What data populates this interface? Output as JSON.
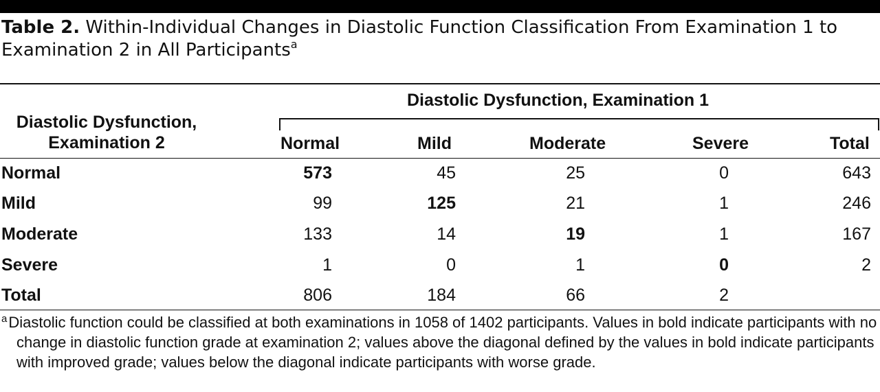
{
  "caption": {
    "label": "Table 2.",
    "text": "Within-Individual Changes in Diastolic Function Classification From Examination 1 to Examination 2 in All Participants",
    "footnote_mark": "a"
  },
  "table": {
    "stub_header_line1": "Diastolic Dysfunction,",
    "stub_header_line2": "Examination 2",
    "spanner": "Diastolic Dysfunction, Examination 1",
    "columns": [
      "Normal",
      "Mild",
      "Moderate",
      "Severe",
      "Total"
    ],
    "rows": [
      {
        "label": "Normal",
        "cells": [
          "573",
          "45",
          "25",
          "0",
          "643"
        ],
        "bold_index": 0
      },
      {
        "label": "Mild",
        "cells": [
          "99",
          "125",
          "21",
          "1",
          "246"
        ],
        "bold_index": 1
      },
      {
        "label": "Moderate",
        "cells": [
          "133",
          "14",
          "19",
          "1",
          "167"
        ],
        "bold_index": 2
      },
      {
        "label": "Severe",
        "cells": [
          "1",
          "0",
          "1",
          "0",
          "2"
        ],
        "bold_index": 3
      },
      {
        "label": "Total",
        "cells": [
          "806",
          "184",
          "66",
          "2",
          ""
        ],
        "bold_index": -1
      }
    ]
  },
  "footnote": {
    "mark": "a",
    "text": "Diastolic function could be classified at both examinations in 1058 of 1402 participants. Values in bold indicate participants with no change in diastolic function grade at examination 2; values above the diagonal defined by the values in bold indicate participants with improved grade; values below the diagonal indicate participants with worse grade."
  }
}
